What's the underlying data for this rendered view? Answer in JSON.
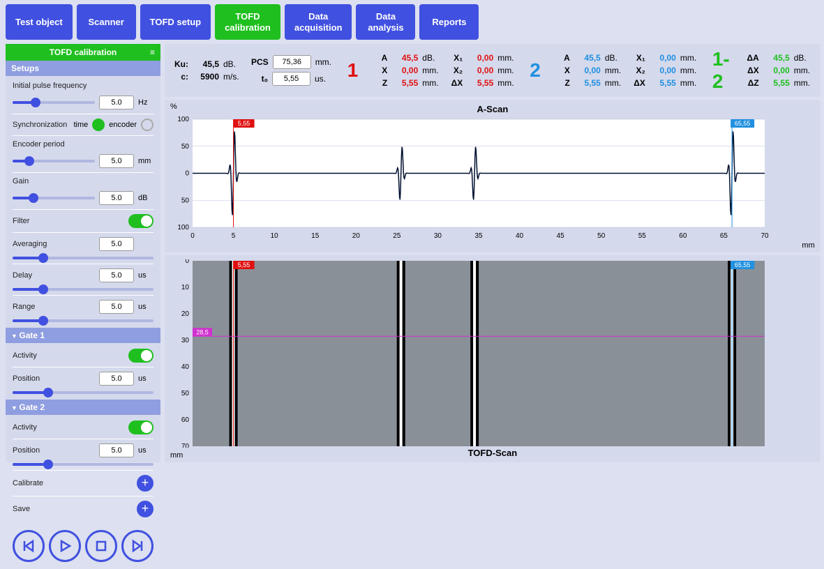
{
  "nav": {
    "items": [
      {
        "label": "Test object",
        "active": false
      },
      {
        "label": "Scanner",
        "active": false
      },
      {
        "label": "TOFD setup",
        "active": false
      },
      {
        "label": "TOFD\ncalibration",
        "active": true
      },
      {
        "label": "Data\nacquisition",
        "active": false
      },
      {
        "label": "Data\nanalysis",
        "active": false
      },
      {
        "label": "Reports",
        "active": false
      }
    ]
  },
  "sidebar": {
    "title": "TOFD calibration",
    "setups_header": "Setups",
    "initial_pulse": {
      "label": "Initial pulse frequency",
      "value": "5.0",
      "unit": "Hz",
      "pct": 28
    },
    "sync": {
      "label": "Synchronization",
      "time_label": "time",
      "encoder_label": "encoder",
      "time_on": true
    },
    "encoder_period": {
      "label": "Encoder period",
      "value": "5.0",
      "unit": "mm",
      "pct": 20
    },
    "gain": {
      "label": "Gain",
      "value": "5.0",
      "unit": "dB",
      "pct": 25
    },
    "filter": {
      "label": "Filter",
      "on": true
    },
    "averaging": {
      "label": "Averaging",
      "value": "5.0",
      "unit": "",
      "pct": 22
    },
    "delay": {
      "label": "Delay",
      "value": "5.0",
      "unit": "us",
      "pct": 22
    },
    "range": {
      "label": "Range",
      "value": "5.0",
      "unit": "us",
      "pct": 22
    },
    "gate1": {
      "header": "Gate  1",
      "activity_label": "Activity",
      "on": true,
      "position_label": "Position",
      "value": "5.0",
      "unit": "us",
      "pct": 25
    },
    "gate2": {
      "header": "Gate 2",
      "activity_label": "Activity",
      "on": true,
      "position_label": "Position",
      "value": "5.0",
      "unit": "us",
      "pct": 25
    },
    "calibrate_label": "Calibrate",
    "save_label": "Save"
  },
  "params": {
    "ku": {
      "label": "Ku:",
      "value": "45,5",
      "unit": "dB."
    },
    "c": {
      "label": "c:",
      "value": "5900",
      "unit": "m/s."
    },
    "pcs": {
      "label": "PCS",
      "value": "75,36",
      "unit": "mm."
    },
    "t0": {
      "label": "t₀",
      "value": "5,55",
      "unit": "us."
    },
    "col1": {
      "num": "1",
      "rows": [
        {
          "l1": "A",
          "v1": "45,5",
          "u1": "dB.",
          "l2": "X₁",
          "v2": "0,00",
          "u2": "mm."
        },
        {
          "l1": "X",
          "v1": "0,00",
          "u1": "mm.",
          "l2": "X₂",
          "v2": "0,00",
          "u2": "mm."
        },
        {
          "l1": "Z",
          "v1": "5,55",
          "u1": "mm.",
          "l2": "ΔX",
          "v2": "5,55",
          "u2": "mm."
        }
      ]
    },
    "col2": {
      "num": "2",
      "rows": [
        {
          "l1": "A",
          "v1": "45,5",
          "u1": "dB.",
          "l2": "X₁",
          "v2": "0,00",
          "u2": "mm."
        },
        {
          "l1": "X",
          "v1": "0,00",
          "u1": "mm.",
          "l2": "X₂",
          "v2": "0,00",
          "u2": "mm."
        },
        {
          "l1": "Z",
          "v1": "5,55",
          "u1": "mm.",
          "l2": "ΔX",
          "v2": "5,55",
          "u2": "mm."
        }
      ]
    },
    "col3": {
      "num": "1-2",
      "rows": [
        {
          "l1": "ΔA",
          "v1": "45,5",
          "u1": "dB."
        },
        {
          "l1": "ΔX",
          "v1": "0,00",
          "u1": "mm."
        },
        {
          "l1": "ΔZ",
          "v1": "5,55",
          "u1": "mm."
        }
      ]
    }
  },
  "ascan": {
    "title": "A-Scan",
    "y_unit": "%",
    "x_unit": "mm",
    "xlim": [
      0,
      70
    ],
    "xtick_step": 5,
    "ylim": [
      -100,
      100
    ],
    "yticks": [
      100,
      50,
      0,
      50,
      100
    ],
    "cursor1": {
      "x": 5.0,
      "label": "5,55",
      "color": "#e01010"
    },
    "cursor2": {
      "x": 66.0,
      "label": "65,55",
      "color": "#2090e0"
    },
    "line_color": "#001030",
    "background": "#ffffff",
    "grid_color": "#b8c0d8",
    "wavelets": [
      {
        "x": 5.0,
        "amp": 95
      },
      {
        "x": 25.5,
        "amp": 60
      },
      {
        "x": 34.5,
        "amp": 60
      },
      {
        "x": 66.0,
        "amp": 95
      }
    ]
  },
  "tofd": {
    "title": "TOFD-Scan",
    "x_unit": "mm",
    "y_unit": "mm",
    "ylim": [
      0,
      70
    ],
    "ytick_step": 10,
    "cursor1": {
      "x": 5.0,
      "label": "5,55",
      "color": "#e01010"
    },
    "cursor2": {
      "x": 66.0,
      "label": "65,55",
      "color": "#2090e0"
    },
    "hline": {
      "y": 28.5,
      "label": "28,5",
      "color": "#d030d0"
    },
    "background": "#8a9098",
    "stripe_positions": [
      5.0,
      25.5,
      34.5,
      66.0
    ]
  },
  "colors": {
    "primary": "#4050e0",
    "active": "#1fbf1f",
    "red": "#e01010",
    "blue": "#2090e0",
    "green": "#1fbf1f",
    "panel": "#d5d9ec",
    "body": "#dce0f0"
  }
}
